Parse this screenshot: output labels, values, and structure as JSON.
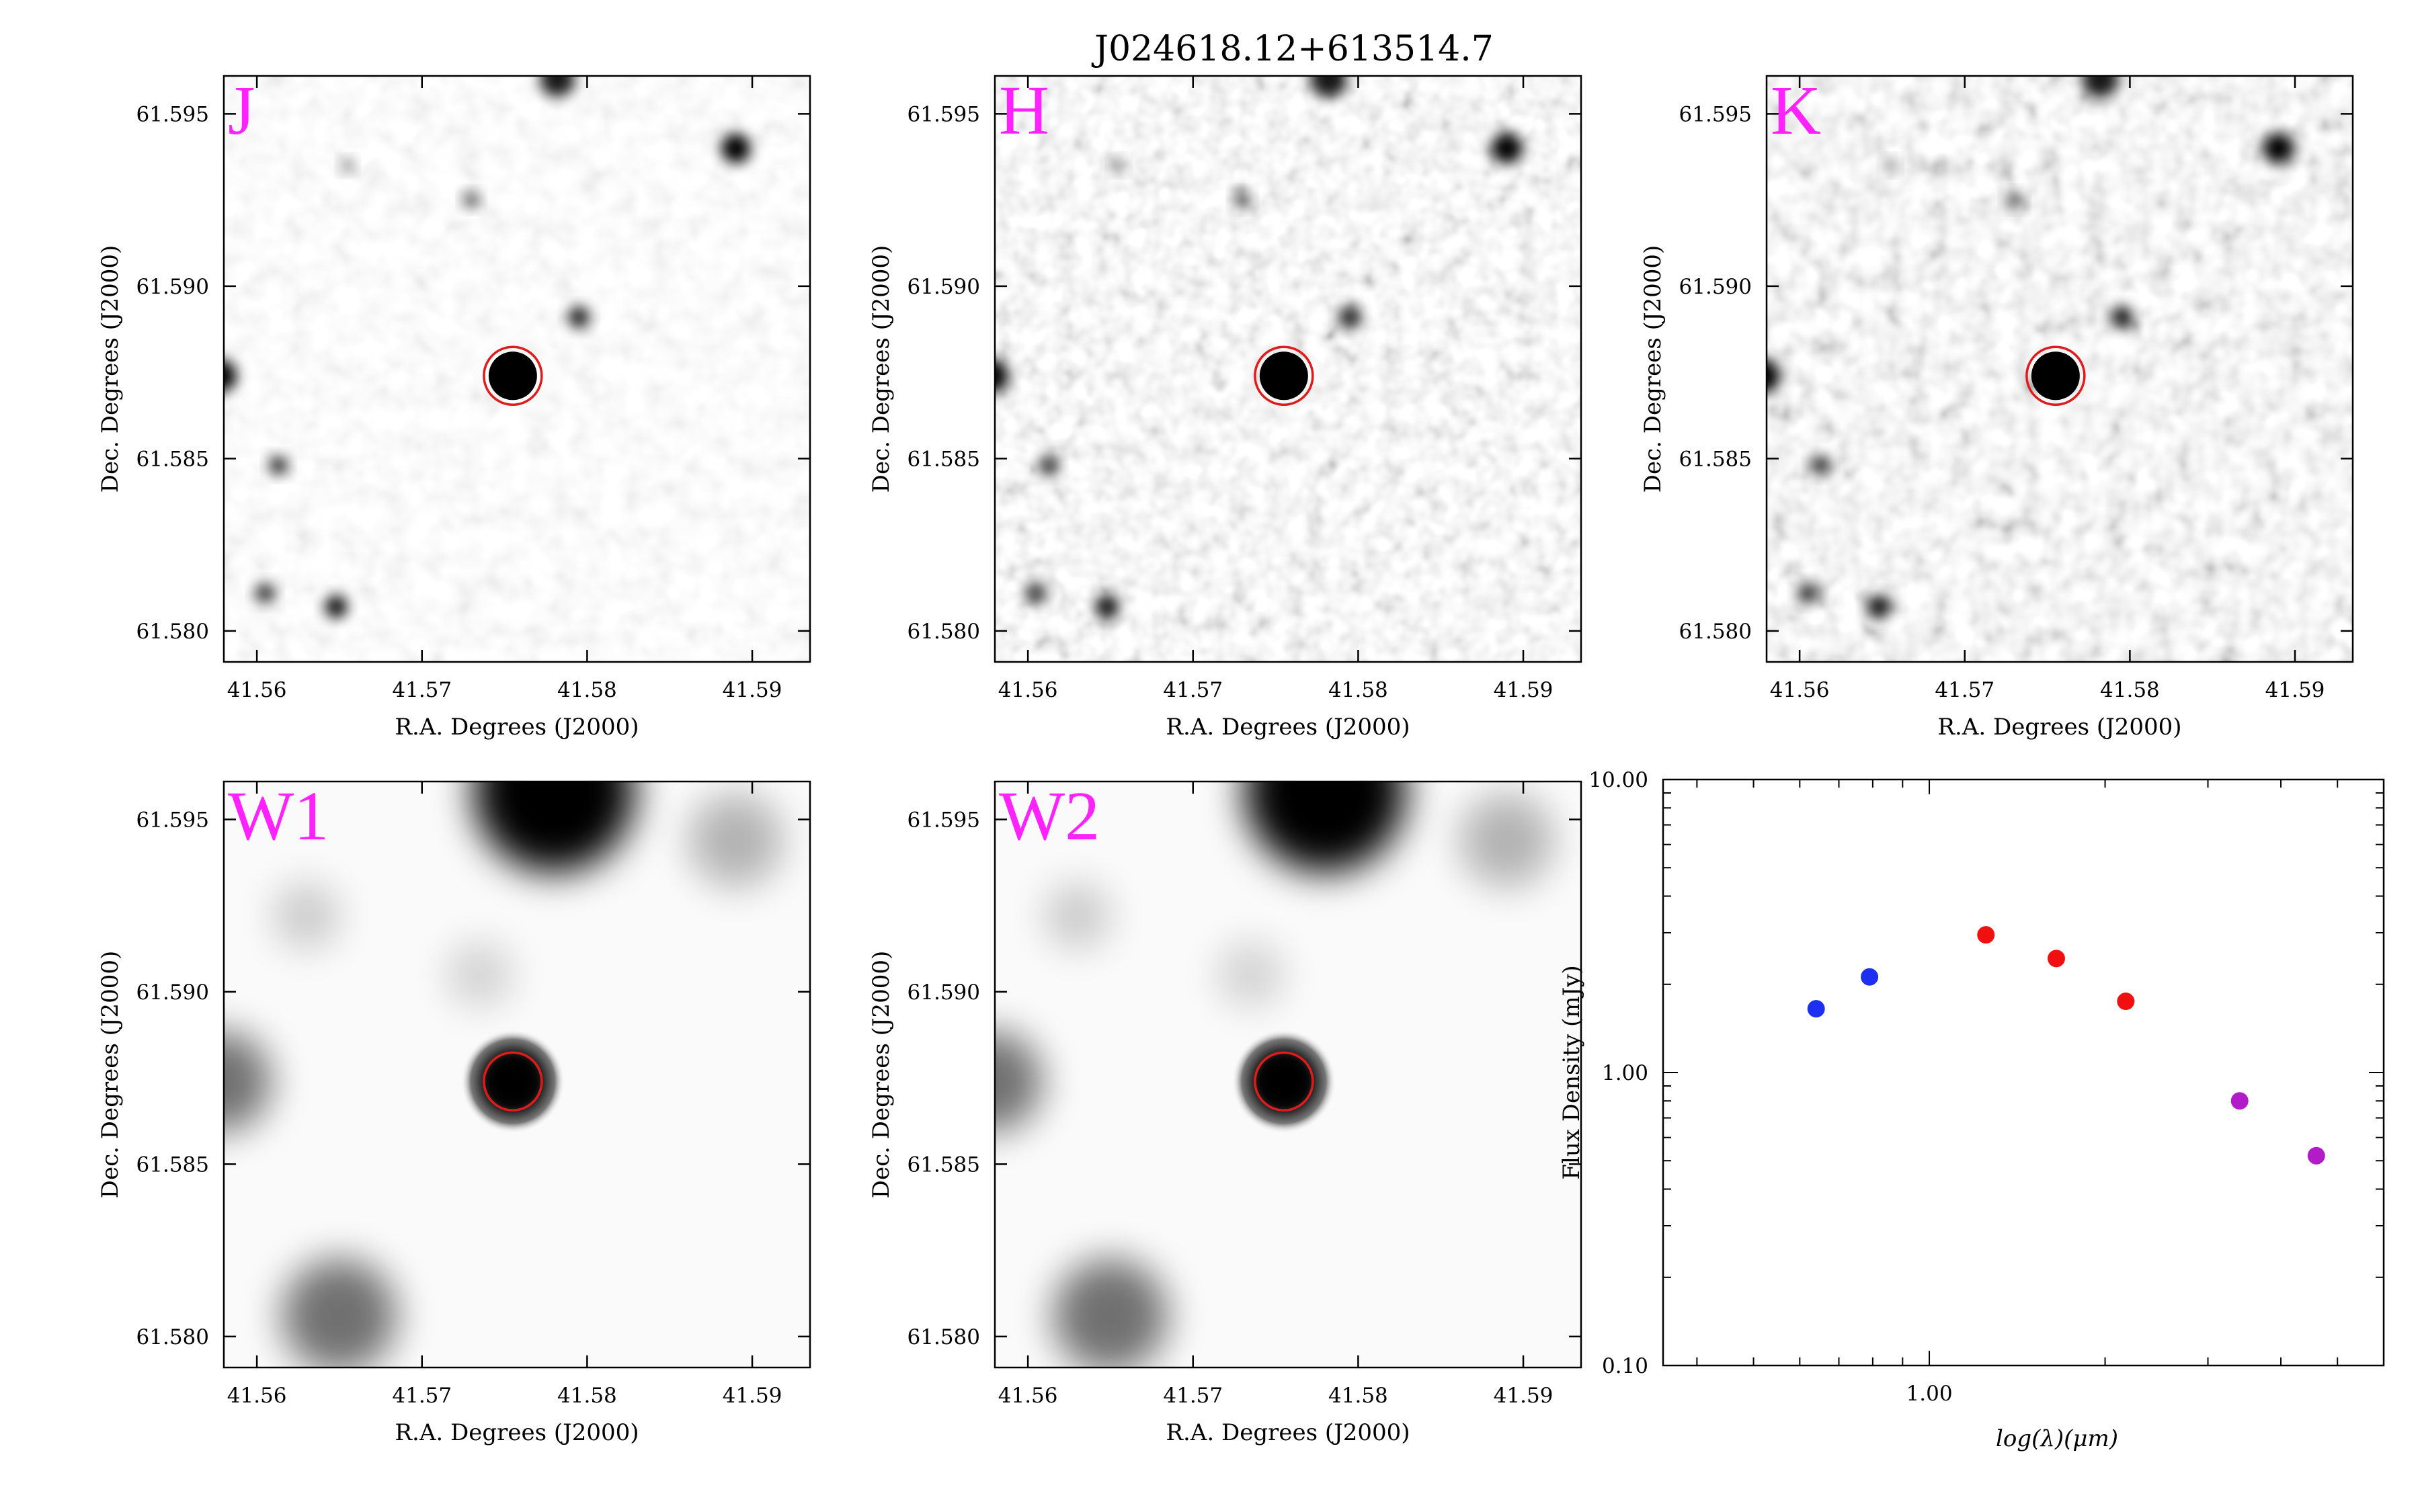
{
  "title": "J024618.12+613514.7",
  "colors": {
    "band_label": "#ff22ff",
    "marker_circle": "#e01b1b",
    "optical": "#1d2ff0",
    "nir": "#f01010",
    "mir": "#b21cc8"
  },
  "cutout_axes": {
    "xlabel": "R.A. Degrees (J2000)",
    "ylabel": "Dec. Degrees (J2000)",
    "xlim": [
      41.558,
      41.5935
    ],
    "ylim": [
      61.5791,
      61.5961
    ],
    "xticks": [
      "41.56",
      "41.57",
      "41.58",
      "41.59"
    ],
    "xtick_values": [
      41.56,
      41.57,
      41.58,
      41.59
    ],
    "yticks": [
      "61.595",
      "61.590",
      "61.585",
      "61.580"
    ],
    "ytick_values": [
      61.595,
      61.59,
      61.585,
      61.58
    ]
  },
  "panels": [
    {
      "band": "J",
      "kind": "nir"
    },
    {
      "band": "H",
      "kind": "nir"
    },
    {
      "band": "K",
      "kind": "nir"
    },
    {
      "band": "W1",
      "kind": "wise"
    },
    {
      "band": "W2",
      "kind": "wise"
    }
  ],
  "target": {
    "ra": 41.5755,
    "dec": 61.5874
  },
  "chart_data": {
    "type": "scatter",
    "xlabel": "log(λ)(μm)",
    "ylabel": "Flux Density (mJy)",
    "xscale": "log",
    "yscale": "log",
    "xlim": [
      0.35,
      6.0
    ],
    "ylim": [
      0.1,
      10.0
    ],
    "xticks": [
      "1.00"
    ],
    "xtick_values": [
      1.0
    ],
    "yticks": [
      "10.00",
      "1.00",
      "0.10"
    ],
    "ytick_values": [
      10.0,
      1.0,
      0.1
    ],
    "grid": false,
    "points": [
      {
        "x": 0.64,
        "y": 1.65,
        "color": "#1d2ff0"
      },
      {
        "x": 0.79,
        "y": 2.12,
        "color": "#1d2ff0"
      },
      {
        "x": 1.25,
        "y": 2.95,
        "color": "#f01010"
      },
      {
        "x": 1.65,
        "y": 2.45,
        "color": "#f01010"
      },
      {
        "x": 2.17,
        "y": 1.75,
        "color": "#f01010"
      },
      {
        "x": 3.4,
        "y": 0.8,
        "color": "#b21cc8"
      },
      {
        "x": 4.6,
        "y": 0.52,
        "color": "#b21cc8"
      }
    ]
  }
}
